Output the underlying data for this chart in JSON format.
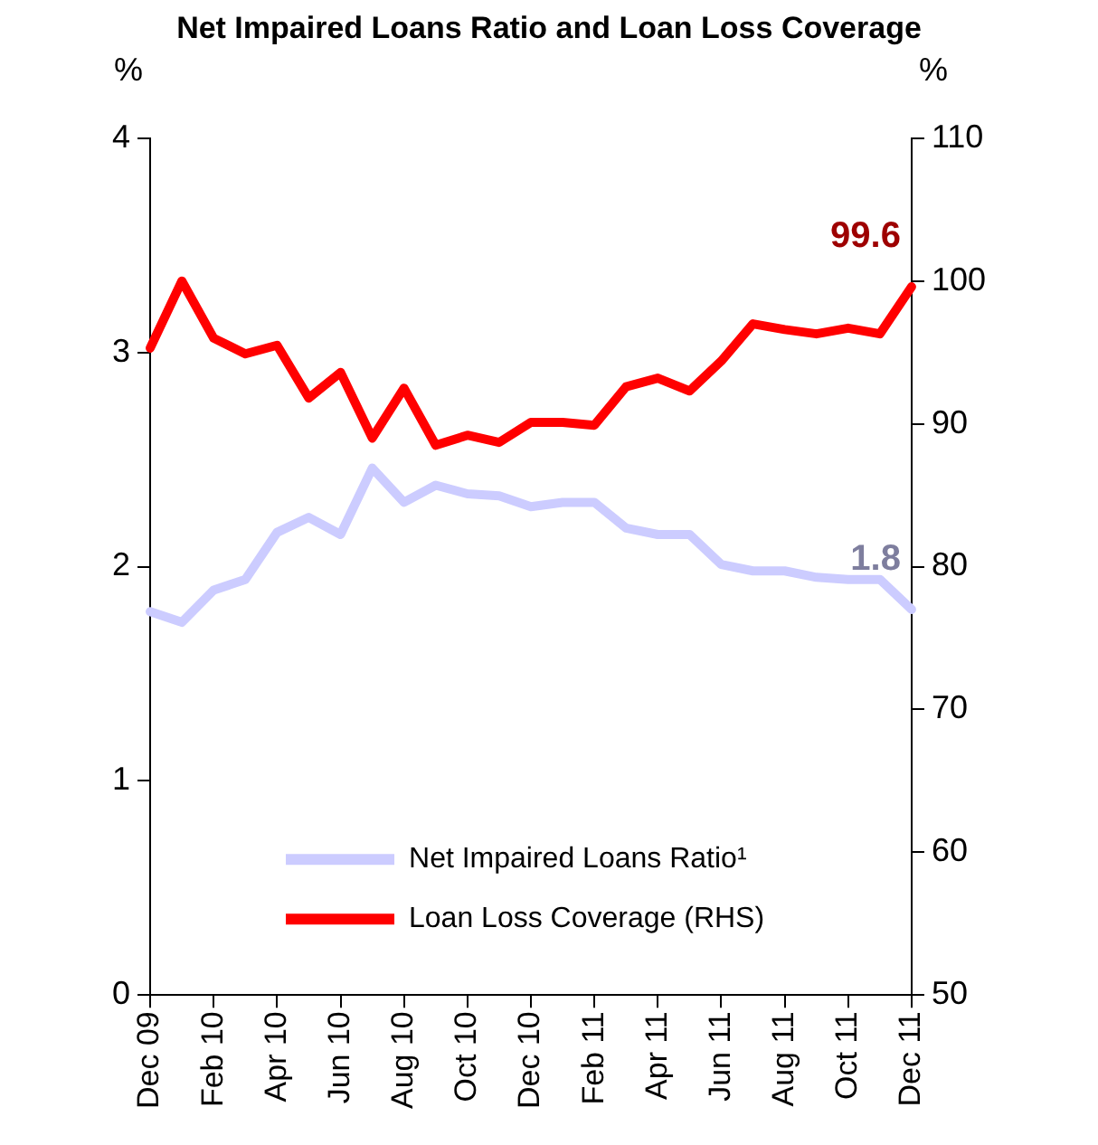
{
  "chart_data": {
    "type": "line",
    "title": "Net Impaired Loans Ratio and Loan Loss Coverage",
    "categories": [
      "Dec 09",
      null,
      "Feb 10",
      null,
      "Apr 10",
      null,
      "Jun 10",
      null,
      "Aug 10",
      null,
      "Oct 10",
      null,
      "Dec 10",
      null,
      "Feb 11",
      null,
      "Apr 11",
      null,
      "Jun 11",
      null,
      "Aug 11",
      null,
      "Oct 11",
      null,
      "Dec 11"
    ],
    "series": [
      {
        "name": "Net Impaired Loans Ratio¹",
        "color": "#ccccff",
        "values": [
          1.79,
          1.74,
          1.89,
          1.94,
          2.16,
          2.23,
          2.15,
          2.46,
          2.3,
          2.38,
          2.34,
          2.33,
          2.28,
          2.3,
          2.3,
          2.18,
          2.15,
          2.15,
          2.01,
          1.98,
          1.98,
          1.95,
          1.94,
          1.94,
          1.8
        ],
        "value_labels": [
          null,
          null,
          null,
          null,
          null,
          null,
          null,
          null,
          null,
          null,
          null,
          null,
          null,
          null,
          null,
          null,
          null,
          null,
          null,
          null,
          null,
          null,
          null,
          null,
          "1.8"
        ]
      },
      {
        "name": "Loan Loss Coverage (RHS)",
        "color": "#ff0000",
        "axis": "y2",
        "values": [
          95.3,
          100.0,
          96.0,
          94.9,
          95.5,
          91.8,
          93.6,
          89.0,
          92.5,
          88.5,
          89.2,
          88.7,
          90.1,
          90.1,
          89.9,
          92.6,
          93.2,
          92.3,
          94.4,
          97.0,
          96.6,
          96.3,
          96.7,
          96.3,
          99.6
        ],
        "value_labels": [
          null,
          null,
          null,
          null,
          null,
          null,
          null,
          null,
          null,
          null,
          null,
          null,
          null,
          null,
          null,
          null,
          null,
          null,
          null,
          null,
          null,
          null,
          null,
          null,
          "99.6"
        ]
      }
    ],
    "ylabel": "%",
    "y2label": "%",
    "ylim": [
      0,
      4
    ],
    "yticks": [
      0,
      1,
      2,
      3,
      4
    ],
    "y2lim": [
      50,
      110
    ],
    "y2ticks": [
      50,
      60,
      70,
      80,
      90,
      100,
      110
    ],
    "grid": false,
    "legend": "bottom",
    "marker": "none",
    "line_style": "solid"
  }
}
